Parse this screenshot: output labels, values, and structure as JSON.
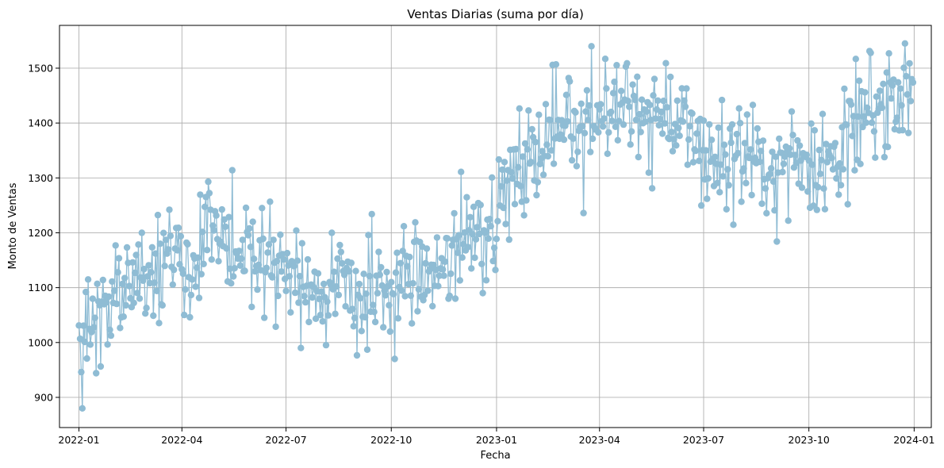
{
  "chart_data": {
    "type": "line",
    "title": "Ventas Diarias (suma por día)",
    "xlabel": "Fecha",
    "ylabel": "Monto de Ventas",
    "x_range": [
      "2021-12-15",
      "2024-01-16"
    ],
    "ylim": [
      845,
      1578
    ],
    "x_ticks": [
      "2022-01",
      "2022-04",
      "2022-07",
      "2022-10",
      "2023-01",
      "2023-04",
      "2023-07",
      "2023-10",
      "2024-01"
    ],
    "y_ticks": [
      900,
      1000,
      1100,
      1200,
      1300,
      1400,
      1500
    ],
    "grid": true,
    "legend": "none",
    "marker": "circle",
    "color": "#8fbcd4",
    "series": [
      {
        "x": [
          "2022-01-01",
          "2022-01-08",
          "2022-01-15",
          "2022-01-22",
          "2022-01-29",
          "2022-02-05",
          "2022-02-12",
          "2022-02-19",
          "2022-02-26",
          "2022-03-05",
          "2022-03-12",
          "2022-03-19",
          "2022-03-26",
          "2022-04-02",
          "2022-04-09",
          "2022-04-16",
          "2022-04-23",
          "2022-04-30",
          "2022-05-07",
          "2022-05-14",
          "2022-05-21",
          "2022-05-28",
          "2022-06-04",
          "2022-06-11",
          "2022-06-18",
          "2022-06-25",
          "2022-07-02",
          "2022-07-09",
          "2022-07-16",
          "2022-07-23",
          "2022-07-30",
          "2022-08-06",
          "2022-08-13",
          "2022-08-20",
          "2022-08-27",
          "2022-09-03",
          "2022-09-10",
          "2022-09-17",
          "2022-09-24",
          "2022-10-01",
          "2022-10-08",
          "2022-10-15",
          "2022-10-22",
          "2022-10-29",
          "2022-11-05",
          "2022-11-12",
          "2022-11-19",
          "2022-11-26",
          "2022-12-03",
          "2022-12-10",
          "2022-12-17",
          "2022-12-24",
          "2022-12-31",
          "2023-01-07",
          "2023-01-14",
          "2023-01-21",
          "2023-01-28",
          "2023-02-04",
          "2023-02-11",
          "2023-02-18",
          "2023-02-25",
          "2023-03-04",
          "2023-03-11",
          "2023-03-18",
          "2023-03-25",
          "2023-04-01",
          "2023-04-08",
          "2023-04-15",
          "2023-04-22",
          "2023-04-29",
          "2023-05-06",
          "2023-05-13",
          "2023-05-20",
          "2023-05-27",
          "2023-06-03",
          "2023-06-10",
          "2023-06-17",
          "2023-06-24",
          "2023-07-01",
          "2023-07-08",
          "2023-07-15",
          "2023-07-22",
          "2023-07-29",
          "2023-08-05",
          "2023-08-12",
          "2023-08-19",
          "2023-08-26",
          "2023-09-02",
          "2023-09-09",
          "2023-09-16",
          "2023-09-23",
          "2023-09-30",
          "2023-10-07",
          "2023-10-14",
          "2023-10-21",
          "2023-10-28",
          "2023-11-04",
          "2023-11-11",
          "2023-11-18",
          "2023-11-25",
          "2023-12-02",
          "2023-12-09",
          "2023-12-16",
          "2023-12-23",
          "2023-12-30"
        ],
        "y": [
          1002,
          1030,
          1040,
          1030,
          1060,
          1080,
          1100,
          1110,
          1125,
          1140,
          1150,
          1165,
          1160,
          1150,
          1155,
          1165,
          1170,
          1175,
          1175,
          1170,
          1160,
          1160,
          1165,
          1160,
          1150,
          1140,
          1135,
          1125,
          1115,
          1110,
          1105,
          1100,
          1100,
          1095,
          1090,
          1085,
          1090,
          1080,
          1070,
          1080,
          1110,
          1125,
          1125,
          1120,
          1120,
          1130,
          1140,
          1165,
          1190,
          1205,
          1215,
          1225,
          1230,
          1260,
          1290,
          1315,
          1330,
          1345,
          1365,
          1385,
          1395,
          1405,
          1410,
          1420,
          1420,
          1410,
          1410,
          1420,
          1425,
          1420,
          1415,
          1415,
          1420,
          1415,
          1410,
          1395,
          1385,
          1370,
          1355,
          1335,
          1325,
          1335,
          1345,
          1345,
          1340,
          1330,
          1325,
          1320,
          1330,
          1340,
          1345,
          1345,
          1335,
          1330,
          1340,
          1350,
          1380,
          1395,
          1400,
          1410,
          1420,
          1440,
          1450,
          1470,
          1480
        ],
        "y_extremes": [
          {
            "x": "2022-01-04",
            "y": 880
          },
          {
            "x": "2022-01-03",
            "y": 946
          },
          {
            "x": "2022-01-16",
            "y": 944
          },
          {
            "x": "2022-02-02",
            "y": 1177
          },
          {
            "x": "2022-02-25",
            "y": 1200
          },
          {
            "x": "2022-03-21",
            "y": 1242
          },
          {
            "x": "2022-04-08",
            "y": 1046
          },
          {
            "x": "2022-04-24",
            "y": 1293
          },
          {
            "x": "2022-05-15",
            "y": 1314
          },
          {
            "x": "2022-06-02",
            "y": 1220
          },
          {
            "x": "2022-07-14",
            "y": 990
          },
          {
            "x": "2022-07-10",
            "y": 1204
          },
          {
            "x": "2022-08-10",
            "y": 1200
          },
          {
            "x": "2022-09-10",
            "y": 987
          },
          {
            "x": "2022-09-14",
            "y": 1234
          },
          {
            "x": "2022-09-30",
            "y": 1020
          },
          {
            "x": "2022-10-04",
            "y": 970
          },
          {
            "x": "2022-10-12",
            "y": 1212
          },
          {
            "x": "2022-11-20",
            "y": 1080
          },
          {
            "x": "2022-11-26",
            "y": 1080
          },
          {
            "x": "2022-12-01",
            "y": 1311
          },
          {
            "x": "2022-12-20",
            "y": 1090
          },
          {
            "x": "2023-01-06",
            "y": 1315
          },
          {
            "x": "2023-02-07",
            "y": 1415
          },
          {
            "x": "2023-03-05",
            "y": 1482
          },
          {
            "x": "2023-03-18",
            "y": 1236
          },
          {
            "x": "2023-03-25",
            "y": 1540
          },
          {
            "x": "2023-04-06",
            "y": 1517
          },
          {
            "x": "2023-04-24",
            "y": 1503
          },
          {
            "x": "2023-05-17",
            "y": 1281
          },
          {
            "x": "2023-06-02",
            "y": 1484
          },
          {
            "x": "2023-06-17",
            "y": 1324
          },
          {
            "x": "2023-07-04",
            "y": 1262
          },
          {
            "x": "2023-07-17",
            "y": 1442
          },
          {
            "x": "2023-08-13",
            "y": 1433
          },
          {
            "x": "2023-08-21",
            "y": 1253
          },
          {
            "x": "2023-09-03",
            "y": 1184
          },
          {
            "x": "2023-09-13",
            "y": 1222
          },
          {
            "x": "2023-09-16",
            "y": 1421
          },
          {
            "x": "2023-10-15",
            "y": 1243
          },
          {
            "x": "2023-11-04",
            "y": 1252
          },
          {
            "x": "2023-11-24",
            "y": 1528
          },
          {
            "x": "2023-11-28",
            "y": 1337
          },
          {
            "x": "2023-12-10",
            "y": 1527
          },
          {
            "x": "2023-12-24",
            "y": 1545
          },
          {
            "x": "2023-12-27",
            "y": 1382
          },
          {
            "x": "2023-12-30",
            "y": 1480
          }
        ]
      }
    ]
  }
}
